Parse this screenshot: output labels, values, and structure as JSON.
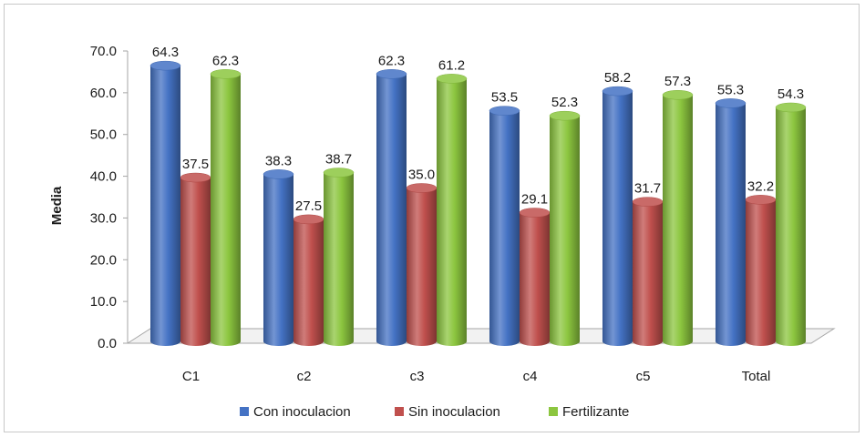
{
  "chart_data": {
    "type": "bar",
    "title": "",
    "xlabel": "",
    "ylabel": "Media",
    "ylim": [
      0,
      70
    ],
    "yticks": [
      "0.0",
      "10.0",
      "20.0",
      "30.0",
      "40.0",
      "50.0",
      "60.0",
      "70.0"
    ],
    "categories": [
      "C1",
      "c2",
      "c3",
      "c4",
      "c5",
      "Total"
    ],
    "series": [
      {
        "name": "Con inoculacion",
        "color": "#4472c4",
        "values": [
          64.3,
          38.3,
          62.3,
          53.5,
          58.2,
          55.3
        ]
      },
      {
        "name": "Sin inoculacion",
        "color": "#c0504d",
        "values": [
          37.5,
          27.5,
          35.0,
          29.1,
          31.7,
          32.2
        ]
      },
      {
        "name": "Fertilizante",
        "color": "#8cc63f",
        "values": [
          62.3,
          38.7,
          61.2,
          52.3,
          57.3,
          54.3
        ]
      }
    ],
    "data_labels": [
      [
        "64.3",
        "38.3",
        "62.3",
        "53.5",
        "58.2",
        "55.3"
      ],
      [
        "37.5",
        "27.5",
        "35.0",
        "29.1",
        "31.7",
        "32.2"
      ],
      [
        "62.3",
        "38.7",
        "61.2",
        "52.3",
        "57.3",
        "54.3"
      ]
    ],
    "legend_position": "bottom",
    "style": "3d-cylinder",
    "grid": false
  }
}
